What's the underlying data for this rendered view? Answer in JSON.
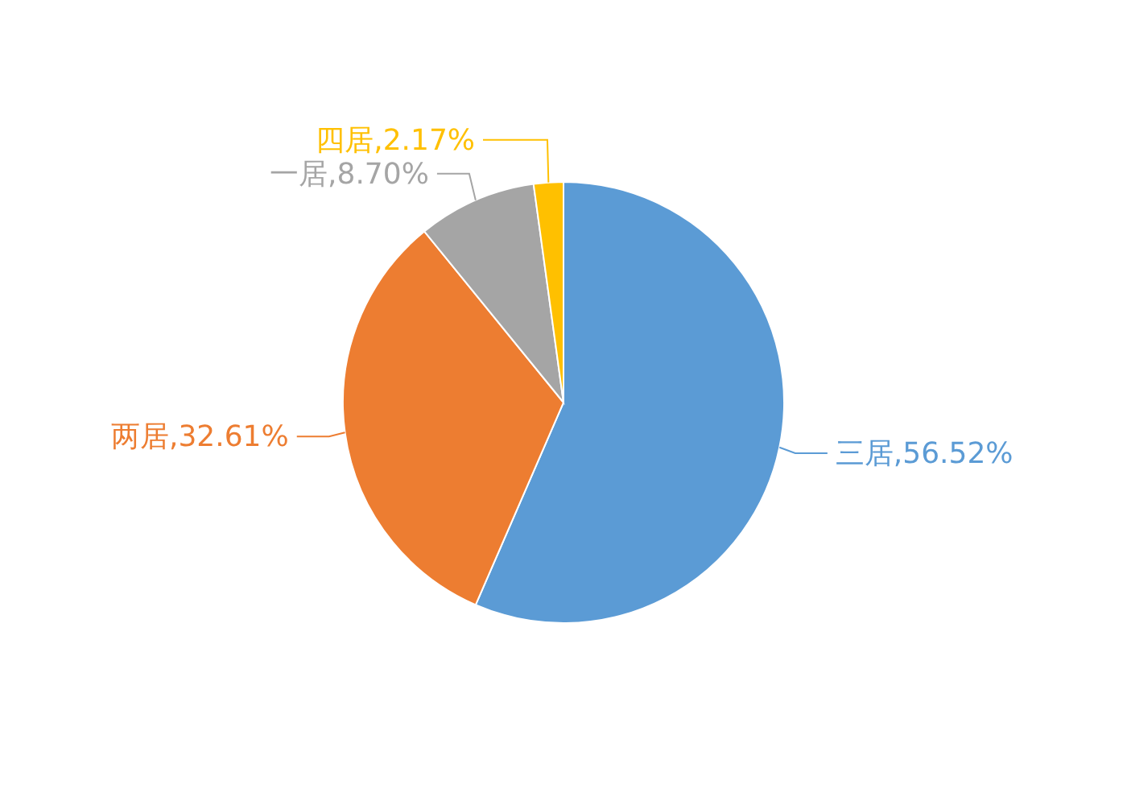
{
  "chart_data": {
    "type": "pie",
    "categories": [
      "三居",
      "两居",
      "一居",
      "四居"
    ],
    "values": [
      56.52,
      32.61,
      8.7,
      2.17
    ],
    "value_labels": [
      "56.52%",
      "32.61%",
      "8.70%",
      "2.17%"
    ],
    "colors": [
      "#5b9bd5",
      "#ed7d31",
      "#a5a5a5",
      "#ffc000"
    ]
  }
}
